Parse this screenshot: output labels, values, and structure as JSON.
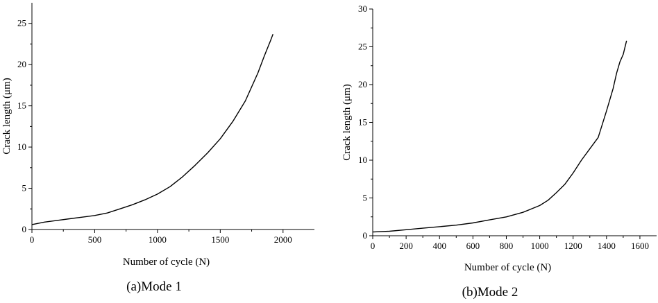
{
  "chart_data": [
    {
      "type": "line",
      "caption": "(a)Mode 1",
      "xlabel": "Number of cycle (N)",
      "ylabel": "Crack length (μm)",
      "xlim": [
        0,
        2250
      ],
      "ylim": [
        0,
        27.5
      ],
      "xticks": [
        0,
        500,
        1000,
        1500,
        2000
      ],
      "yticks": [
        0,
        5,
        10,
        15,
        20,
        25
      ],
      "grid": false,
      "series": [
        {
          "x": [
            0,
            100,
            200,
            300,
            400,
            500,
            600,
            700,
            800,
            900,
            1000,
            1100,
            1200,
            1300,
            1400,
            1500,
            1600,
            1700,
            1800,
            1850,
            1900,
            1920
          ],
          "y": [
            0.6,
            0.9,
            1.1,
            1.3,
            1.5,
            1.7,
            2.0,
            2.5,
            3.0,
            3.6,
            4.3,
            5.2,
            6.4,
            7.8,
            9.3,
            11.0,
            13.1,
            15.6,
            19.0,
            21.0,
            22.9,
            23.7
          ]
        }
      ]
    },
    {
      "type": "line",
      "caption": "(b)Mode 2",
      "xlabel": "Number of cycle (N)",
      "ylabel": "Crack length (μm)",
      "xlim": [
        0,
        1700
      ],
      "ylim": [
        0,
        30
      ],
      "xticks": [
        0,
        200,
        400,
        600,
        800,
        1000,
        1200,
        1400,
        1600
      ],
      "yticks": [
        0,
        5,
        10,
        15,
        20,
        25,
        30
      ],
      "grid": false,
      "series": [
        {
          "x": [
            0,
            100,
            200,
            300,
            400,
            500,
            600,
            700,
            800,
            900,
            1000,
            1050,
            1100,
            1150,
            1200,
            1250,
            1300,
            1350,
            1400,
            1440,
            1460,
            1480,
            1500,
            1520
          ],
          "y": [
            0.5,
            0.6,
            0.8,
            1.0,
            1.2,
            1.4,
            1.7,
            2.1,
            2.5,
            3.1,
            4.0,
            4.7,
            5.7,
            6.8,
            8.3,
            10.0,
            11.5,
            13.0,
            16.5,
            19.5,
            21.5,
            23.0,
            24.0,
            25.8
          ]
        }
      ]
    }
  ]
}
